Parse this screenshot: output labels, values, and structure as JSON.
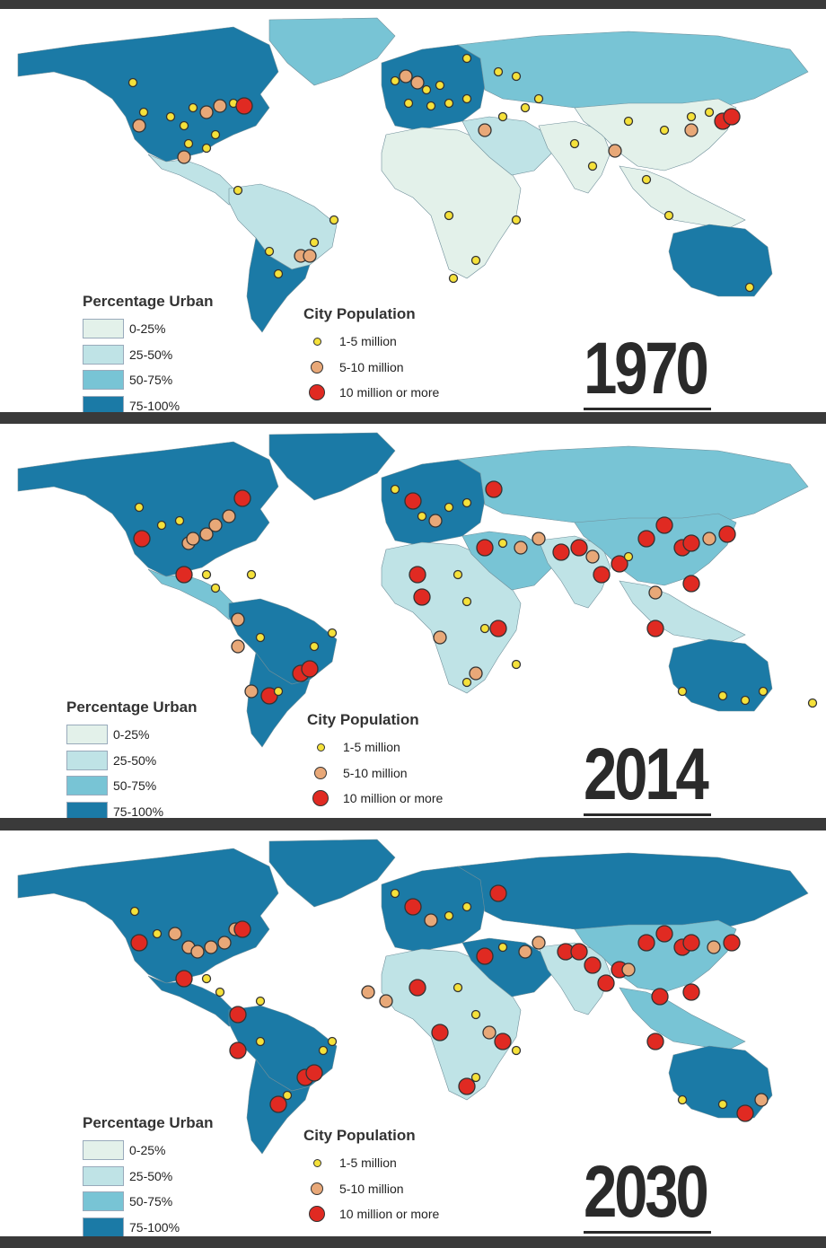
{
  "colors": {
    "water": "#ffffff",
    "urban_0_25": "#e3f1ea",
    "urban_25_50": "#bfe3e6",
    "urban_50_75": "#78c4d5",
    "urban_75_100": "#1b7aa6",
    "city_small": "#f5e13a",
    "city_medium": "#e8a878",
    "city_large": "#e02a22",
    "outline": "#333333"
  },
  "legend": {
    "urban_title": "Percentage Urban",
    "urban_classes": [
      "0-25%",
      "25-50%",
      "50-75%",
      "75-100%"
    ],
    "city_title": "City Population",
    "city_classes": [
      "1-5 million",
      "5-10 million",
      "10 million or more"
    ]
  },
  "panels": [
    {
      "year": "1970",
      "urban_class": {
        "north_america": 3,
        "greenland": 2,
        "central_america": 1,
        "south_america_north": 1,
        "south_america_south": 3,
        "europe": 3,
        "russia": 2,
        "africa": 0,
        "middle_east": 1,
        "south_asia": 0,
        "east_asia": 0,
        "southeast_asia": 0,
        "australia": 3
      }
    },
    {
      "year": "2014",
      "urban_class": {
        "north_america": 3,
        "greenland": 3,
        "central_america": 2,
        "south_america_north": 3,
        "south_america_south": 3,
        "europe": 3,
        "russia": 2,
        "africa": 1,
        "middle_east": 2,
        "south_asia": 1,
        "east_asia": 2,
        "southeast_asia": 1,
        "australia": 3
      }
    },
    {
      "year": "2030",
      "urban_class": {
        "north_america": 3,
        "greenland": 3,
        "central_america": 3,
        "south_america_north": 3,
        "south_america_south": 3,
        "europe": 3,
        "russia": 3,
        "africa": 1,
        "middle_east": 3,
        "south_asia": 1,
        "east_asia": 2,
        "southeast_asia": 2,
        "australia": 3
      }
    }
  ]
}
